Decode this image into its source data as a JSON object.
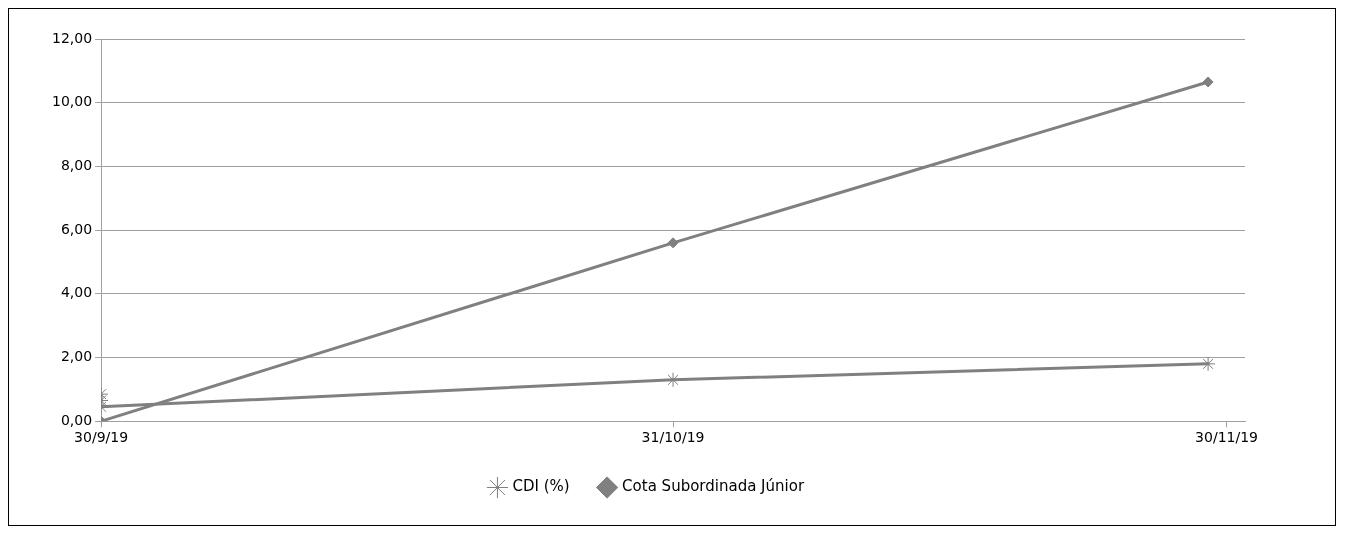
{
  "chart_data": {
    "type": "line",
    "x": [
      "2019-09-30",
      "2019-10-31",
      "2019-11-29"
    ],
    "series": [
      {
        "name": "CDI (%)",
        "color": "#808080",
        "marker": "cross",
        "x": [
          "2019-09-30",
          "2019-09-30",
          "2019-09-30",
          "2019-10-31",
          "2019-11-29"
        ],
        "values": [
          0.85,
          0.65,
          0.45,
          1.3,
          1.8
        ]
      },
      {
        "name": "Cota Subordinada Júnior",
        "color": "#808080",
        "marker": "diamond",
        "values": [
          0,
          5.6,
          10.65
        ]
      }
    ],
    "xlim": [
      "2019-09-30",
      "2019-12-01"
    ],
    "xticks": [
      {
        "value": "2019-09-30",
        "label": "30/9/19"
      },
      {
        "value": "2019-10-31",
        "label": "31/10/19"
      },
      {
        "value": "2019-11-30",
        "label": "30/11/19"
      }
    ],
    "ylim": [
      0,
      12
    ],
    "yticks": [
      {
        "value": 0,
        "label": "0,00"
      },
      {
        "value": 2,
        "label": "2,00"
      },
      {
        "value": 4,
        "label": "4,00"
      },
      {
        "value": 6,
        "label": "6,00"
      },
      {
        "value": 8,
        "label": "8,00"
      },
      {
        "value": 10,
        "label": "10,00"
      },
      {
        "value": 12,
        "label": "12,00"
      }
    ],
    "grid": "y",
    "legend": "bottom",
    "line_style": "solid"
  }
}
